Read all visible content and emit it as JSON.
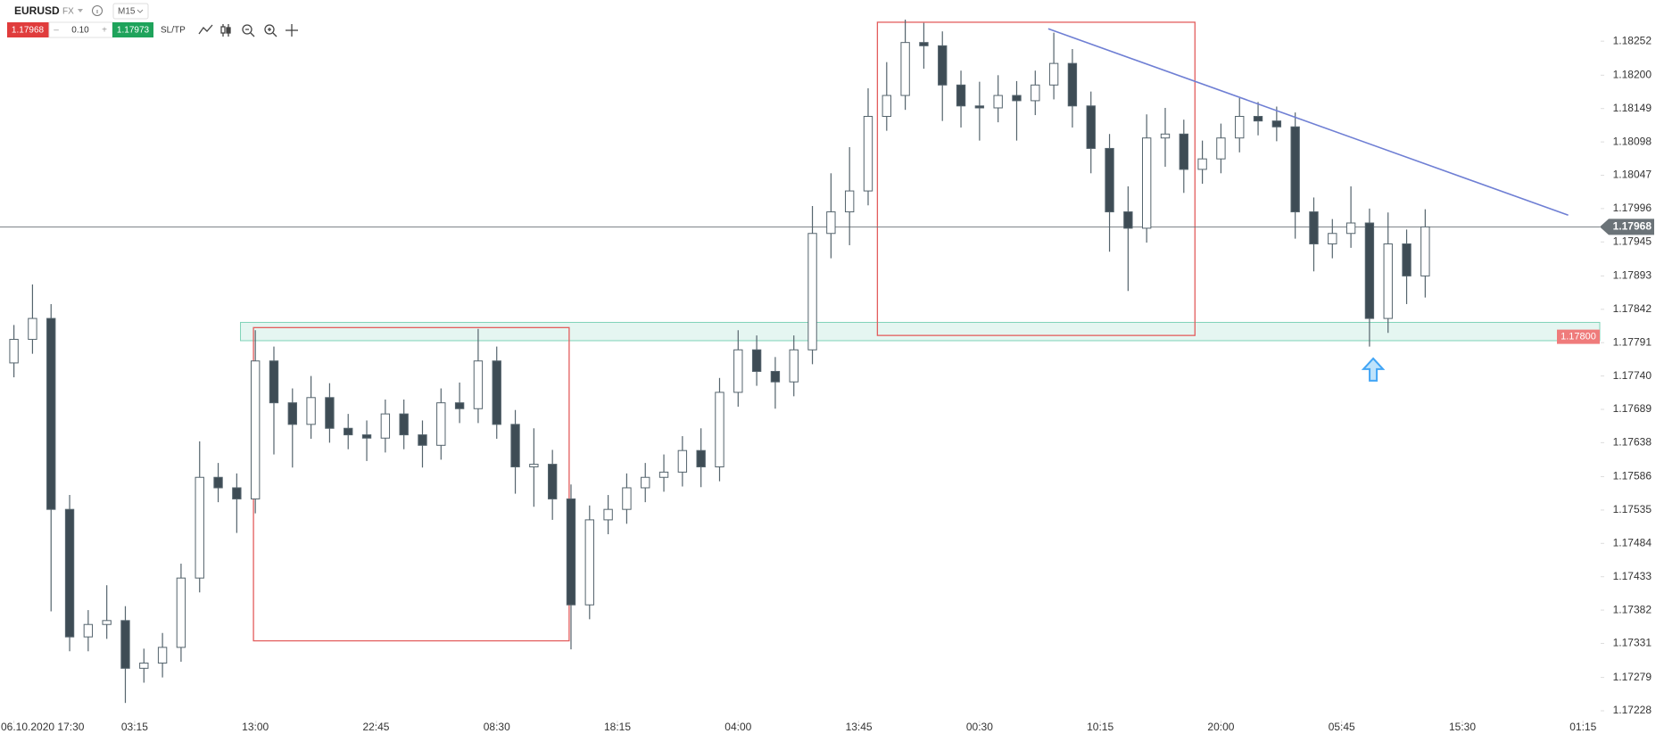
{
  "toolbar": {
    "symbol": "EURUSD",
    "market": "FX",
    "timeframe": "M15",
    "sell": "1.17968",
    "minus": "–",
    "lot": "0.10",
    "plus": "+",
    "buy": "1.17973",
    "sltp": "SL/TP"
  },
  "chart_data": {
    "type": "candlestick",
    "x": [
      0,
      1,
      2,
      3,
      4,
      5,
      6,
      7,
      8,
      9,
      10,
      11,
      12,
      13,
      14,
      15,
      16,
      17,
      18,
      19,
      20,
      21,
      22,
      23,
      24,
      25,
      26,
      27,
      28,
      29,
      30,
      31,
      32,
      33,
      34,
      35,
      36,
      37,
      38,
      39,
      40,
      41,
      42,
      43,
      44,
      45,
      46,
      47,
      48,
      49,
      50,
      51,
      52,
      53,
      54,
      55,
      56,
      57,
      58,
      59,
      60,
      61,
      62,
      63,
      64,
      65,
      66,
      67,
      68,
      69,
      70,
      71,
      72,
      73,
      74,
      75,
      76
    ],
    "open": [
      1.1776,
      1.17796,
      1.17828,
      1.17536,
      1.17341,
      1.1736,
      1.17366,
      1.17293,
      1.17301,
      1.17325,
      1.17431,
      1.17585,
      1.17569,
      1.17552,
      1.17763,
      1.17699,
      1.17666,
      1.17707,
      1.1766,
      1.1765,
      1.17645,
      1.17682,
      1.1765,
      1.17634,
      1.17699,
      1.1769,
      1.17763,
      1.17666,
      1.17601,
      1.17605,
      1.17552,
      1.1739,
      1.1752,
      1.17536,
      1.17569,
      1.17585,
      1.17593,
      1.17626,
      1.17601,
      1.17715,
      1.1778,
      1.17747,
      1.17731,
      1.1778,
      1.17958,
      1.17991,
      1.18023,
      1.18137,
      1.18169,
      1.1825,
      1.18245,
      1.18185,
      1.18153,
      1.1815,
      1.18169,
      1.18161,
      1.18185,
      1.18218,
      1.18153,
      1.18088,
      1.17991,
      1.17966,
      1.18104,
      1.1811,
      1.18056,
      1.18072,
      1.18104,
      1.18137,
      1.1813,
      1.18121,
      1.17991,
      1.17942,
      1.17958,
      1.17974,
      1.17828,
      1.17942,
      1.17893
    ],
    "high": [
      1.17818,
      1.1788,
      1.1785,
      1.17558,
      1.17382,
      1.1742,
      1.17388,
      1.17323,
      1.17347,
      1.17453,
      1.1764,
      1.17607,
      1.17591,
      1.1781,
      1.17785,
      1.17721,
      1.1774,
      1.17729,
      1.17682,
      1.17672,
      1.17704,
      1.17704,
      1.17672,
      1.17721,
      1.1773,
      1.17812,
      1.17785,
      1.17688,
      1.1766,
      1.17627,
      1.17574,
      1.17542,
      1.17558,
      1.17591,
      1.17607,
      1.1762,
      1.17648,
      1.1766,
      1.17737,
      1.1781,
      1.17802,
      1.17769,
      1.17802,
      1.18,
      1.1805,
      1.1809,
      1.1818,
      1.1822,
      1.18285,
      1.1828,
      1.18267,
      1.18207,
      1.1819,
      1.182,
      1.18191,
      1.18207,
      1.18265,
      1.1824,
      1.18175,
      1.1811,
      1.1803,
      1.1814,
      1.1815,
      1.18132,
      1.181,
      1.18126,
      1.18165,
      1.18159,
      1.18152,
      1.18143,
      1.18013,
      1.1798,
      1.1803,
      1.17996,
      1.1799,
      1.17964,
      1.17995
    ],
    "low": [
      1.17738,
      1.17774,
      1.1738,
      1.17319,
      1.17319,
      1.17338,
      1.1724,
      1.17271,
      1.17279,
      1.17303,
      1.17409,
      1.17547,
      1.175,
      1.1753,
      1.1762,
      1.176,
      1.17644,
      1.17638,
      1.17628,
      1.1761,
      1.17623,
      1.17628,
      1.176,
      1.17612,
      1.17668,
      1.17668,
      1.17644,
      1.1756,
      1.1754,
      1.1752,
      1.17322,
      1.17368,
      1.17498,
      1.17514,
      1.17547,
      1.17563,
      1.17571,
      1.1757,
      1.17579,
      1.17693,
      1.17725,
      1.1769,
      1.17709,
      1.17758,
      1.1792,
      1.1794,
      1.18001,
      1.18115,
      1.18147,
      1.1821,
      1.1813,
      1.1812,
      1.181,
      1.18128,
      1.181,
      1.18139,
      1.18163,
      1.1812,
      1.1805,
      1.1793,
      1.1787,
      1.17944,
      1.1806,
      1.1802,
      1.18034,
      1.1805,
      1.18082,
      1.18108,
      1.18099,
      1.1795,
      1.179,
      1.1792,
      1.17936,
      1.17785,
      1.17806,
      1.1785,
      1.1786
    ],
    "close": [
      1.17796,
      1.17828,
      1.17536,
      1.17341,
      1.1736,
      1.17366,
      1.17293,
      1.17301,
      1.17325,
      1.17431,
      1.17585,
      1.17569,
      1.17552,
      1.17763,
      1.17699,
      1.17666,
      1.17707,
      1.1766,
      1.1765,
      1.17645,
      1.17682,
      1.1765,
      1.17634,
      1.17699,
      1.1769,
      1.17763,
      1.17666,
      1.17601,
      1.17605,
      1.17552,
      1.1739,
      1.1752,
      1.17536,
      1.17569,
      1.17585,
      1.17593,
      1.17626,
      1.17601,
      1.17715,
      1.1778,
      1.17747,
      1.17731,
      1.1778,
      1.17958,
      1.17991,
      1.18023,
      1.18137,
      1.18169,
      1.1825,
      1.18245,
      1.18185,
      1.18153,
      1.1815,
      1.18169,
      1.18161,
      1.18185,
      1.18218,
      1.18153,
      1.18088,
      1.17991,
      1.17966,
      1.18104,
      1.1811,
      1.18056,
      1.18072,
      1.18104,
      1.18137,
      1.1813,
      1.18121,
      1.17991,
      1.17942,
      1.17958,
      1.17974,
      1.17828,
      1.17942,
      1.17893,
      1.17968
    ],
    "up_color": "#ffffff",
    "down_color": "#3e4c55",
    "outline_color": "#55646d",
    "xlim": [
      -0.75,
      85.4
    ],
    "xticks": [
      {
        "value": 0,
        "label": "06.10.2020 17:30"
      },
      {
        "value": 6.5,
        "label": "03:15"
      },
      {
        "value": 13,
        "label": "13:00"
      },
      {
        "value": 19.5,
        "label": "22:45"
      },
      {
        "value": 26,
        "label": "08:30"
      },
      {
        "value": 32.5,
        "label": "18:15"
      },
      {
        "value": 39,
        "label": "04:00"
      },
      {
        "value": 45.5,
        "label": "13:45"
      },
      {
        "value": 52,
        "label": "00:30"
      },
      {
        "value": 58.5,
        "label": "10:15"
      },
      {
        "value": 65,
        "label": "20:00"
      },
      {
        "value": 71.5,
        "label": "05:45"
      },
      {
        "value": 78,
        "label": "15:30"
      },
      {
        "value": 84.5,
        "label": "01:15"
      }
    ],
    "ylim": [
      1.17213,
      1.18315
    ],
    "yticks": [
      1.18252,
      {
        "value": 1.182,
        "label": "1.18200"
      },
      1.18149,
      1.18098,
      1.18047,
      1.17996,
      1.17945,
      1.17893,
      1.17842,
      1.17791,
      {
        "value": 1.1774,
        "label": "1.17740"
      },
      1.17689,
      1.17638,
      1.17586,
      1.17535,
      1.17484,
      1.17433,
      1.17382,
      1.17331,
      1.17279,
      1.17228
    ],
    "last_price": 1.17968,
    "last_price_color": "#6b7378",
    "zone": {
      "top": 1.17822,
      "bottom": 1.17794,
      "level": {
        "value": 1.178,
        "label": "1.17800"
      },
      "color": "#7fd3b8",
      "label_color": "#ef7b7b"
    },
    "rectangles": [
      {
        "x": [
          12.9,
          29.9
        ],
        "price": [
          1.17814,
          1.17335
        ],
        "color": "#e35d5d"
      },
      {
        "x": [
          46.5,
          63.6
        ],
        "price": [
          1.18281,
          1.17802
        ],
        "color": "#e35d5d"
      }
    ],
    "trendline": {
      "x": [
        55.7,
        83.7
      ],
      "price": [
        1.18271,
        1.17986
      ],
      "color": "#6f7fd4"
    },
    "marker": {
      "x": 73.2,
      "price": 1.17775,
      "color": "#42a5f5"
    }
  }
}
